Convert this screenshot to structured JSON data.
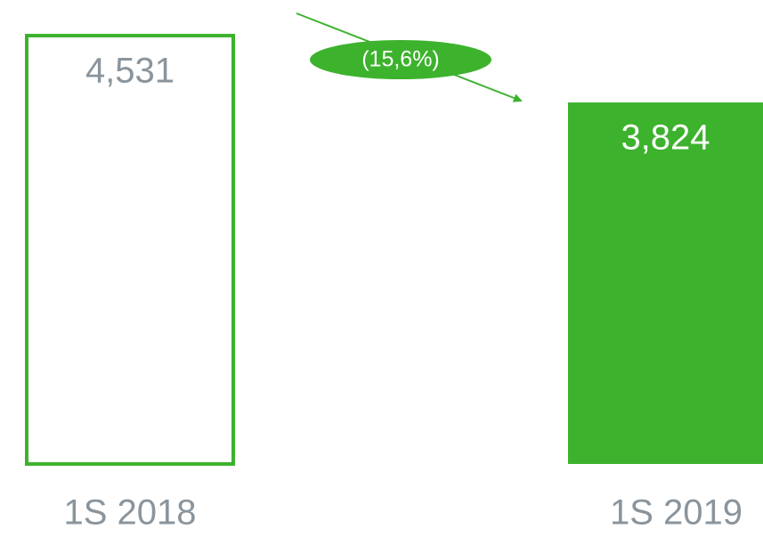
{
  "chart_data": {
    "type": "bar",
    "categories": [
      "1S 2018",
      "1S 2019"
    ],
    "values": [
      4531,
      3824
    ],
    "value_labels": [
      "4,531",
      "3,824"
    ],
    "color": "#3db22d",
    "bar_styles": [
      "outline",
      "solid"
    ],
    "annotation": "(15,6%)"
  }
}
